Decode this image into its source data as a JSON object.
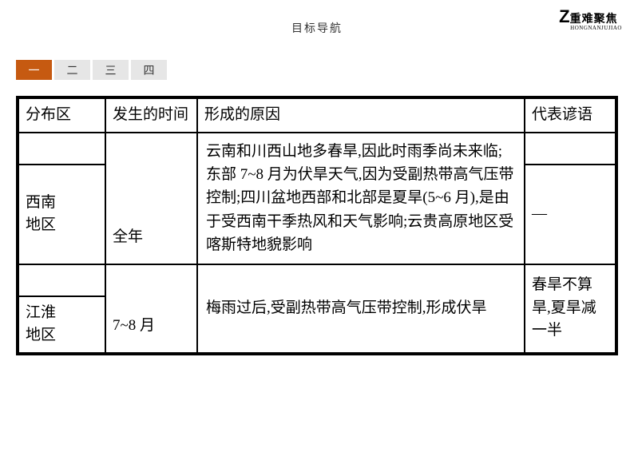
{
  "header": {
    "center_title": "目标导航",
    "logo_z": "Z",
    "logo_cn": "重难聚焦",
    "logo_pinyin": "HONGNANJUJIAO"
  },
  "tabs": {
    "items": [
      {
        "label": "一",
        "active": true
      },
      {
        "label": "二",
        "active": false
      },
      {
        "label": "三",
        "active": false
      },
      {
        "label": "四",
        "active": false
      }
    ]
  },
  "table": {
    "headers": {
      "col1": "分布区",
      "col2": "发生的时间",
      "col3": "形成的原因",
      "col4": "代表谚语"
    },
    "rows": [
      {
        "region": "西南地区",
        "time": "全年",
        "cause": "云南和川西山地多春旱,因此时雨季尚未来临;东部 7~8 月为伏旱天气,因为受副热带高气压带控制;四川盆地西部和北部是夏旱(5~6 月),是由于受西南干季热风和天气影响;云贵高原地区受喀斯特地貌影响",
        "proverb": "—"
      },
      {
        "region": "江淮地区",
        "time": "7~8 月",
        "cause": "梅雨过后,受副热带高气压带控制,形成伏旱",
        "proverb": "春旱不算旱,夏旱减一半"
      }
    ]
  },
  "styling": {
    "active_tab_bg": "#c65a11",
    "inactive_tab_bg": "#e6e6e6",
    "border_color": "#000000",
    "font_size_table": 19,
    "font_size_title": 14
  }
}
